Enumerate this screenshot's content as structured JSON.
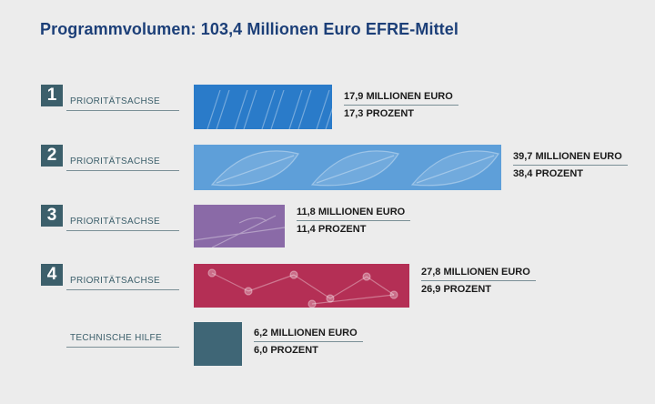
{
  "title": "Programmvolumen: 103,4 Millionen Euro EFRE-Mittel",
  "colors": {
    "title": "#1c3f78",
    "box": "#3c5f6b",
    "axis1": "#2a7bc9",
    "axis2": "#5e9fd9",
    "axis3": "#8a6aa7",
    "axis4": "#b42f55",
    "tech": "#3f6676"
  },
  "chart_data": {
    "type": "bar",
    "categories": [
      {
        "number": "1",
        "label": "PRIORITÄTSACHSE"
      },
      {
        "number": "2",
        "label": "PRIORITÄTSACHSE"
      },
      {
        "number": "3",
        "label": "PRIORITÄTSACHSE"
      },
      {
        "number": "4",
        "label": "PRIORITÄTSACHSE"
      },
      {
        "number": "",
        "label": "TECHNISCHE HILFE"
      }
    ],
    "values": [
      17.9,
      39.7,
      11.8,
      27.8,
      6.2
    ],
    "percent": [
      17.3,
      38.4,
      11.4,
      26.9,
      6.0
    ],
    "value_labels": [
      "17,9 MILLIONEN EURO",
      "39,7 MILLIONEN EURO",
      "11,8 MILLIONEN EURO",
      "27,8 MILLIONEN EURO",
      "6,2 MILLIONEN EURO"
    ],
    "percent_labels": [
      "17,3 PROZENT",
      "38,4 PROZENT",
      "11,4 PROZENT",
      "26,9 PROZENT",
      "6,0 PROZENT"
    ],
    "series_colors": [
      "#2a7bc9",
      "#5e9fd9",
      "#8a6aa7",
      "#b42f55",
      "#3f6676"
    ],
    "xlim": [
      0,
      39.7
    ]
  }
}
